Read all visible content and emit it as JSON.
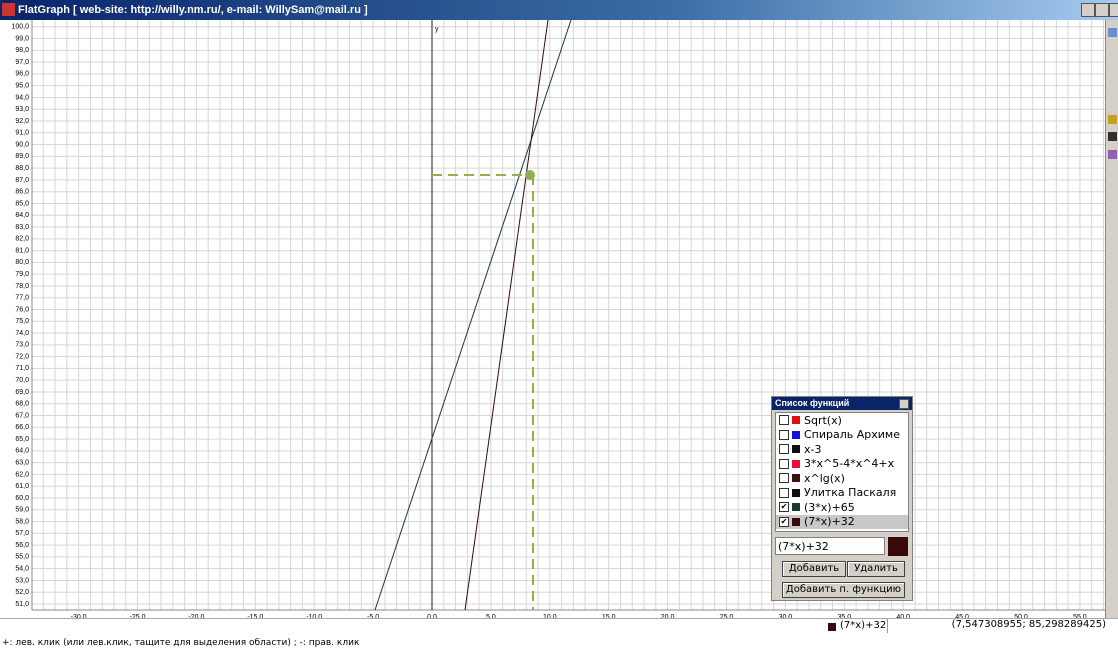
{
  "window": {
    "title": "FlatGraph [ web-site: http://willy.nm.ru/, e-mail: WillySam@mail.ru ]"
  },
  "plot": {
    "y_axis_label": "y",
    "yticks": [
      "51,0",
      "52,0",
      "53,0",
      "54,0",
      "55,0",
      "56,0",
      "57,0",
      "58,0",
      "59,0",
      "60,0",
      "61,0",
      "62,0",
      "63,0",
      "64,0",
      "65,0",
      "66,0",
      "67,0",
      "68,0",
      "69,0",
      "70,0",
      "71,0",
      "72,0",
      "73,0",
      "74,0",
      "75,0",
      "76,0",
      "77,0",
      "78,0",
      "79,0",
      "80,0",
      "81,0",
      "82,0",
      "83,0",
      "84,0",
      "85,0",
      "86,0",
      "87,0",
      "88,0",
      "89,0",
      "90,0",
      "91,0",
      "92,0",
      "93,0",
      "94,0",
      "95,0",
      "96,0",
      "97,0",
      "98,0",
      "99,0",
      "100,0"
    ],
    "xticks": [
      "-30,0",
      "-25,0",
      "-20,0",
      "-15,0",
      "-10,0",
      "-5,0",
      "0,0",
      "5,0",
      "10,0",
      "15,0",
      "20,0",
      "25,0",
      "30,0",
      "35,0",
      "40,0",
      "45,0",
      "50,0",
      "55,0"
    ]
  },
  "function_list": {
    "title": "Список функций",
    "items": [
      {
        "label": "Sqrt(x)",
        "color": "#e01010",
        "checked": false
      },
      {
        "label": "Спираль Архиме",
        "color": "#1010e0",
        "checked": false
      },
      {
        "label": "x-3",
        "color": "#101010",
        "checked": false
      },
      {
        "label": "3*x^5-4*x^4+x",
        "color": "#e8103a",
        "checked": false
      },
      {
        "label": "x^lg(x)",
        "color": "#401010",
        "checked": false
      },
      {
        "label": "Улитка Паскаля",
        "color": "#101010",
        "checked": false
      },
      {
        "label": "(3*x)+65",
        "color": "#1a3a3a",
        "checked": true
      },
      {
        "label": "(7*x)+32",
        "color": "#3a0a0a",
        "checked": true
      }
    ],
    "input": "(7*x)+32",
    "input_color": "#3a0808",
    "buttons": {
      "add": "Добавить",
      "remove": "Удалить",
      "add_param": "Добавить п. функцию"
    }
  },
  "status": {
    "function": "(7*x)+32",
    "color": "#3a0a0a",
    "coords": "(7,547308955; 85,298289425)",
    "hint": "+: лев. клик (или лев.клик, тащите для выделения области) ; -: прав. клик"
  }
}
